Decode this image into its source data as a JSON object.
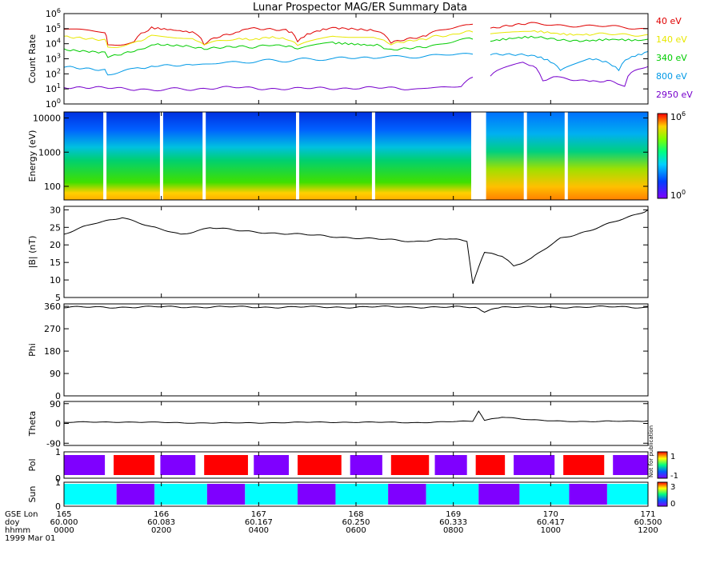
{
  "title": "Lunar Prospector MAG/ER Summary Data",
  "colors": {
    "40eV": "#e00000",
    "140eV": "#e8e800",
    "340eV": "#00cc00",
    "800eV": "#0099e6",
    "2950eV": "#7700cc",
    "pol_pos": "#ff0000",
    "pol_neg": "#7f00ff",
    "sun_day": "#00ffff",
    "sun_night": "#7f00ff"
  },
  "chart_data": [
    {
      "type": "line",
      "name": "count-rate",
      "ylabel": "Count Rate",
      "yscale": "log",
      "ylim": [
        1,
        1000000
      ],
      "yticks": [
        {
          "v": 1,
          "label": "10",
          "sup": "0"
        },
        {
          "v": 10,
          "label": "10",
          "sup": "1"
        },
        {
          "v": 100,
          "label": "10",
          "sup": "2"
        },
        {
          "v": 1000,
          "label": "10",
          "sup": "3"
        },
        {
          "v": 10000,
          "label": "10",
          "sup": "4"
        },
        {
          "v": 100000,
          "label": "10",
          "sup": "5"
        },
        {
          "v": 1000000,
          "label": "10",
          "sup": "6"
        }
      ],
      "series": [
        {
          "name": "40 eV",
          "color": "#e00000",
          "values": [
            [
              0,
              100000
            ],
            [
              0.07,
              70000
            ],
            [
              0.075,
              8000
            ],
            [
              0.12,
              12000
            ],
            [
              0.15,
              100000
            ],
            [
              0.22,
              60000
            ],
            [
              0.24,
              8000
            ],
            [
              0.3,
              50000
            ],
            [
              0.32,
              120000
            ],
            [
              0.38,
              90000
            ],
            [
              0.4,
              12000
            ],
            [
              0.46,
              100000
            ],
            [
              0.53,
              80000
            ],
            [
              0.56,
              12000
            ],
            [
              0.62,
              30000
            ],
            [
              0.7,
              200000
            ],
            [
              0.72,
              null
            ],
            [
              0.73,
              100000
            ],
            [
              0.8,
              200000
            ],
            [
              0.9,
              150000
            ],
            [
              1.0,
              100000
            ]
          ]
        },
        {
          "name": "140 eV",
          "color": "#e8e800",
          "values": [
            [
              0,
              30000
            ],
            [
              0.07,
              20000
            ],
            [
              0.075,
              6000
            ],
            [
              0.12,
              10000
            ],
            [
              0.15,
              30000
            ],
            [
              0.22,
              25000
            ],
            [
              0.24,
              8000
            ],
            [
              0.3,
              20000
            ],
            [
              0.38,
              25000
            ],
            [
              0.4,
              8000
            ],
            [
              0.46,
              30000
            ],
            [
              0.53,
              25000
            ],
            [
              0.56,
              10000
            ],
            [
              0.62,
              20000
            ],
            [
              0.7,
              60000
            ],
            [
              0.72,
              null
            ],
            [
              0.73,
              40000
            ],
            [
              0.8,
              60000
            ],
            [
              0.9,
              40000
            ],
            [
              1.0,
              40000
            ]
          ]
        },
        {
          "name": "340 eV",
          "color": "#00cc00",
          "values": [
            [
              0,
              4000
            ],
            [
              0.07,
              3000
            ],
            [
              0.075,
              1500
            ],
            [
              0.12,
              3000
            ],
            [
              0.15,
              8000
            ],
            [
              0.22,
              7000
            ],
            [
              0.24,
              4000
            ],
            [
              0.3,
              6000
            ],
            [
              0.38,
              8000
            ],
            [
              0.4,
              4000
            ],
            [
              0.46,
              10000
            ],
            [
              0.53,
              8000
            ],
            [
              0.56,
              4000
            ],
            [
              0.62,
              6000
            ],
            [
              0.7,
              20000
            ],
            [
              0.72,
              null
            ],
            [
              0.73,
              15000
            ],
            [
              0.8,
              25000
            ],
            [
              0.9,
              15000
            ],
            [
              1.0,
              20000
            ]
          ]
        },
        {
          "name": "800 eV",
          "color": "#0099e6",
          "values": [
            [
              0,
              300
            ],
            [
              0.07,
              200
            ],
            [
              0.075,
              100
            ],
            [
              0.12,
              200
            ],
            [
              0.15,
              300
            ],
            [
              0.22,
              400
            ],
            [
              0.3,
              600
            ],
            [
              0.38,
              800
            ],
            [
              0.46,
              1000
            ],
            [
              0.53,
              1200
            ],
            [
              0.62,
              1500
            ],
            [
              0.7,
              2000
            ],
            [
              0.72,
              null
            ],
            [
              0.73,
              2000
            ],
            [
              0.8,
              1500
            ],
            [
              0.85,
              200
            ],
            [
              0.9,
              1000
            ],
            [
              0.95,
              150
            ],
            [
              1.0,
              3000
            ]
          ]
        },
        {
          "name": "2950 eV",
          "color": "#7700cc",
          "values": [
            [
              0,
              12
            ],
            [
              0.07,
              15
            ],
            [
              0.12,
              8
            ],
            [
              0.2,
              10
            ],
            [
              0.3,
              12
            ],
            [
              0.4,
              10
            ],
            [
              0.5,
              12
            ],
            [
              0.6,
              10
            ],
            [
              0.68,
              15
            ],
            [
              0.7,
              60
            ],
            [
              0.72,
              null
            ],
            [
              0.73,
              80
            ],
            [
              0.78,
              600
            ],
            [
              0.82,
              40
            ],
            [
              0.85,
              60
            ],
            [
              0.9,
              30
            ],
            [
              0.93,
              40
            ],
            [
              0.96,
              12
            ],
            [
              1.0,
              300
            ]
          ]
        }
      ]
    },
    {
      "type": "heatmap",
      "name": "energy-spectrogram",
      "ylabel": "Energy (eV)",
      "yscale": "log",
      "ylim": [
        40,
        15000
      ],
      "yticks": [
        {
          "v": 100,
          "label": "100"
        },
        {
          "v": 1000,
          "label": "1000"
        },
        {
          "v": 10000,
          "label": "10000"
        }
      ],
      "colorbar": {
        "min_label": "10",
        "min_sup": "0",
        "max_label": "10",
        "max_sup": "6"
      },
      "gaps": [
        0.07,
        0.167,
        0.24,
        0.4,
        0.53,
        0.7,
        0.72,
        0.79,
        0.86
      ]
    },
    {
      "type": "line",
      "name": "btot",
      "ylabel": "|B| (nT)",
      "ylim": [
        5,
        31
      ],
      "yticks": [
        5,
        10,
        15,
        20,
        25,
        30
      ],
      "values": [
        [
          0,
          23
        ],
        [
          0.05,
          26
        ],
        [
          0.1,
          28
        ],
        [
          0.15,
          25
        ],
        [
          0.2,
          23
        ],
        [
          0.25,
          25
        ],
        [
          0.3,
          24
        ],
        [
          0.4,
          23
        ],
        [
          0.5,
          22
        ],
        [
          0.6,
          21
        ],
        [
          0.66,
          22
        ],
        [
          0.69,
          21
        ],
        [
          0.7,
          9
        ],
        [
          0.72,
          18
        ],
        [
          0.75,
          17
        ],
        [
          0.77,
          14
        ],
        [
          0.8,
          16
        ],
        [
          0.85,
          22
        ],
        [
          0.9,
          24
        ],
        [
          0.95,
          27
        ],
        [
          1.0,
          30
        ]
      ]
    },
    {
      "type": "line",
      "name": "phi",
      "ylabel": "Phi",
      "ylim": [
        0,
        370
      ],
      "yticks": [
        0,
        90,
        180,
        270,
        360
      ],
      "values": [
        [
          0,
          356
        ],
        [
          0.2,
          358
        ],
        [
          0.4,
          357
        ],
        [
          0.6,
          358
        ],
        [
          0.7,
          356
        ],
        [
          0.72,
          340
        ],
        [
          0.75,
          358
        ],
        [
          0.8,
          356
        ],
        [
          0.9,
          358
        ],
        [
          1.0,
          357
        ]
      ]
    },
    {
      "type": "line",
      "name": "theta",
      "ylabel": "Theta",
      "ylim": [
        -100,
        100
      ],
      "yticks": [
        -90,
        0,
        90
      ],
      "values": [
        [
          0,
          5
        ],
        [
          0.1,
          7
        ],
        [
          0.2,
          3
        ],
        [
          0.3,
          2
        ],
        [
          0.4,
          5
        ],
        [
          0.5,
          6
        ],
        [
          0.6,
          4
        ],
        [
          0.7,
          10
        ],
        [
          0.71,
          55
        ],
        [
          0.72,
          15
        ],
        [
          0.75,
          30
        ],
        [
          0.8,
          15
        ],
        [
          0.9,
          8
        ],
        [
          1.0,
          12
        ]
      ]
    },
    {
      "type": "heatmap",
      "name": "pol",
      "ylabel": "Pol",
      "ylim": [
        0,
        1
      ],
      "yticks": [
        0,
        1
      ],
      "colorbar": {
        "min_label": "-1",
        "max_label": "1"
      },
      "side_text": "Not for publication",
      "segments": [
        [
          0,
          0.07,
          "neg"
        ],
        [
          0.085,
          0.155,
          "pos"
        ],
        [
          0.165,
          0.225,
          "neg"
        ],
        [
          0.24,
          0.315,
          "pos"
        ],
        [
          0.325,
          0.385,
          "neg"
        ],
        [
          0.4,
          0.475,
          "pos"
        ],
        [
          0.49,
          0.545,
          "neg"
        ],
        [
          0.56,
          0.625,
          "pos"
        ],
        [
          0.635,
          0.69,
          "neg"
        ],
        [
          0.705,
          0.755,
          "pos"
        ],
        [
          0.77,
          0.84,
          "neg"
        ],
        [
          0.855,
          0.925,
          "pos"
        ],
        [
          0.94,
          1.0,
          "neg"
        ]
      ]
    },
    {
      "type": "heatmap",
      "name": "sun",
      "ylabel": "Sun",
      "ylim": [
        0,
        1
      ],
      "yticks": [
        0,
        1
      ],
      "colorbar": {
        "min_label": "0",
        "max_label": "3"
      },
      "segments": [
        [
          0,
          0.09,
          "day"
        ],
        [
          0.09,
          0.155,
          "night"
        ],
        [
          0.155,
          0.245,
          "day"
        ],
        [
          0.245,
          0.31,
          "night"
        ],
        [
          0.31,
          0.4,
          "day"
        ],
        [
          0.4,
          0.465,
          "night"
        ],
        [
          0.465,
          0.555,
          "day"
        ],
        [
          0.555,
          0.62,
          "night"
        ],
        [
          0.62,
          0.71,
          "day"
        ],
        [
          0.71,
          0.78,
          "night"
        ],
        [
          0.78,
          0.865,
          "day"
        ],
        [
          0.865,
          0.93,
          "night"
        ],
        [
          0.93,
          1.0,
          "day"
        ]
      ]
    }
  ],
  "x_axis": {
    "row_labels": [
      "GSE Lon",
      "doy",
      "hhmm"
    ],
    "date_label": "1999 Mar 01",
    "ticks": [
      {
        "lon": "165",
        "doy": "60.000",
        "hhmm": "0000"
      },
      {
        "lon": "166",
        "doy": "60.083",
        "hhmm": "0200"
      },
      {
        "lon": "167",
        "doy": "60.167",
        "hhmm": "0400"
      },
      {
        "lon": "168",
        "doy": "60.250",
        "hhmm": "0600"
      },
      {
        "lon": "169",
        "doy": "60.333",
        "hhmm": "0800"
      },
      {
        "lon": "170",
        "doy": "60.417",
        "hhmm": "1000"
      },
      {
        "lon": "171",
        "doy": "60.500",
        "hhmm": "1200"
      }
    ]
  }
}
